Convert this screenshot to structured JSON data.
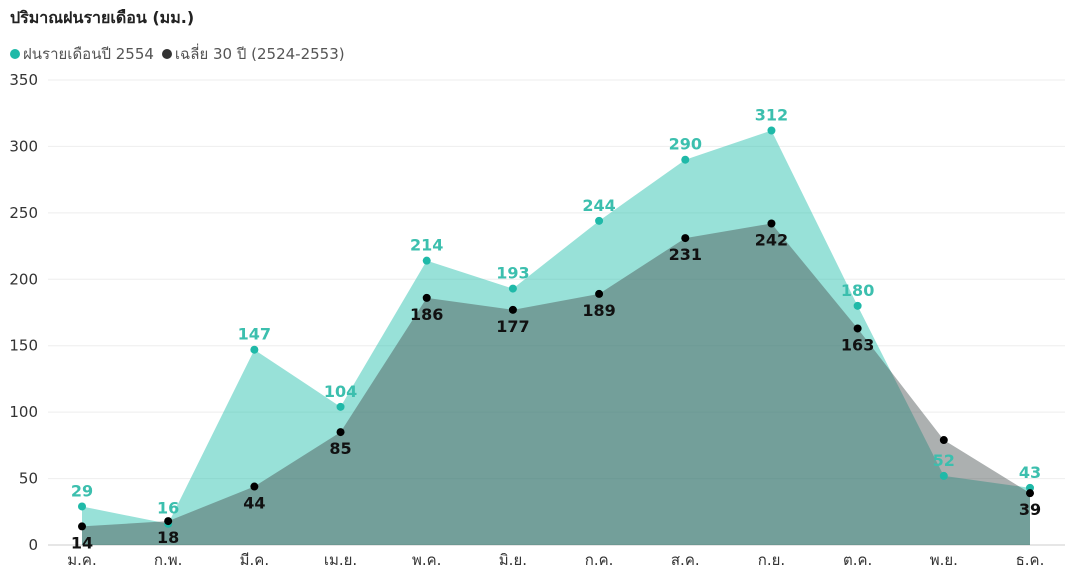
{
  "chart_data": {
    "type": "area",
    "title": "ปริมาณฝนรายเดือน (มม.)",
    "categories": [
      "ม.ค.",
      "ก.พ.",
      "มี.ค.",
      "เม.ย.",
      "พ.ค.",
      "มิ.ย.",
      "ก.ค.",
      "ส.ค.",
      "ก.ย.",
      "ต.ค.",
      "พ.ย.",
      "ธ.ค."
    ],
    "series": [
      {
        "name": "ฝนรายเดือนปี 2554",
        "color": "#1fb9a8",
        "values": [
          29,
          16,
          147,
          104,
          214,
          193,
          244,
          290,
          312,
          180,
          52,
          43
        ],
        "show_labels": [
          true,
          true,
          true,
          true,
          true,
          true,
          true,
          true,
          true,
          true,
          true,
          true
        ]
      },
      {
        "name": "เฉลี่ย 30 ปี (2524-2553)",
        "color": "#000000",
        "values": [
          14,
          18,
          44,
          85,
          186,
          177,
          189,
          231,
          242,
          163,
          79,
          39
        ],
        "show_labels": [
          true,
          true,
          true,
          true,
          true,
          true,
          true,
          true,
          true,
          true,
          false,
          true
        ]
      }
    ],
    "ylim": [
      0,
      350
    ],
    "yticks": [
      0,
      50,
      100,
      150,
      200,
      250,
      300,
      350
    ],
    "grid": true,
    "legend_position": "top-left"
  }
}
